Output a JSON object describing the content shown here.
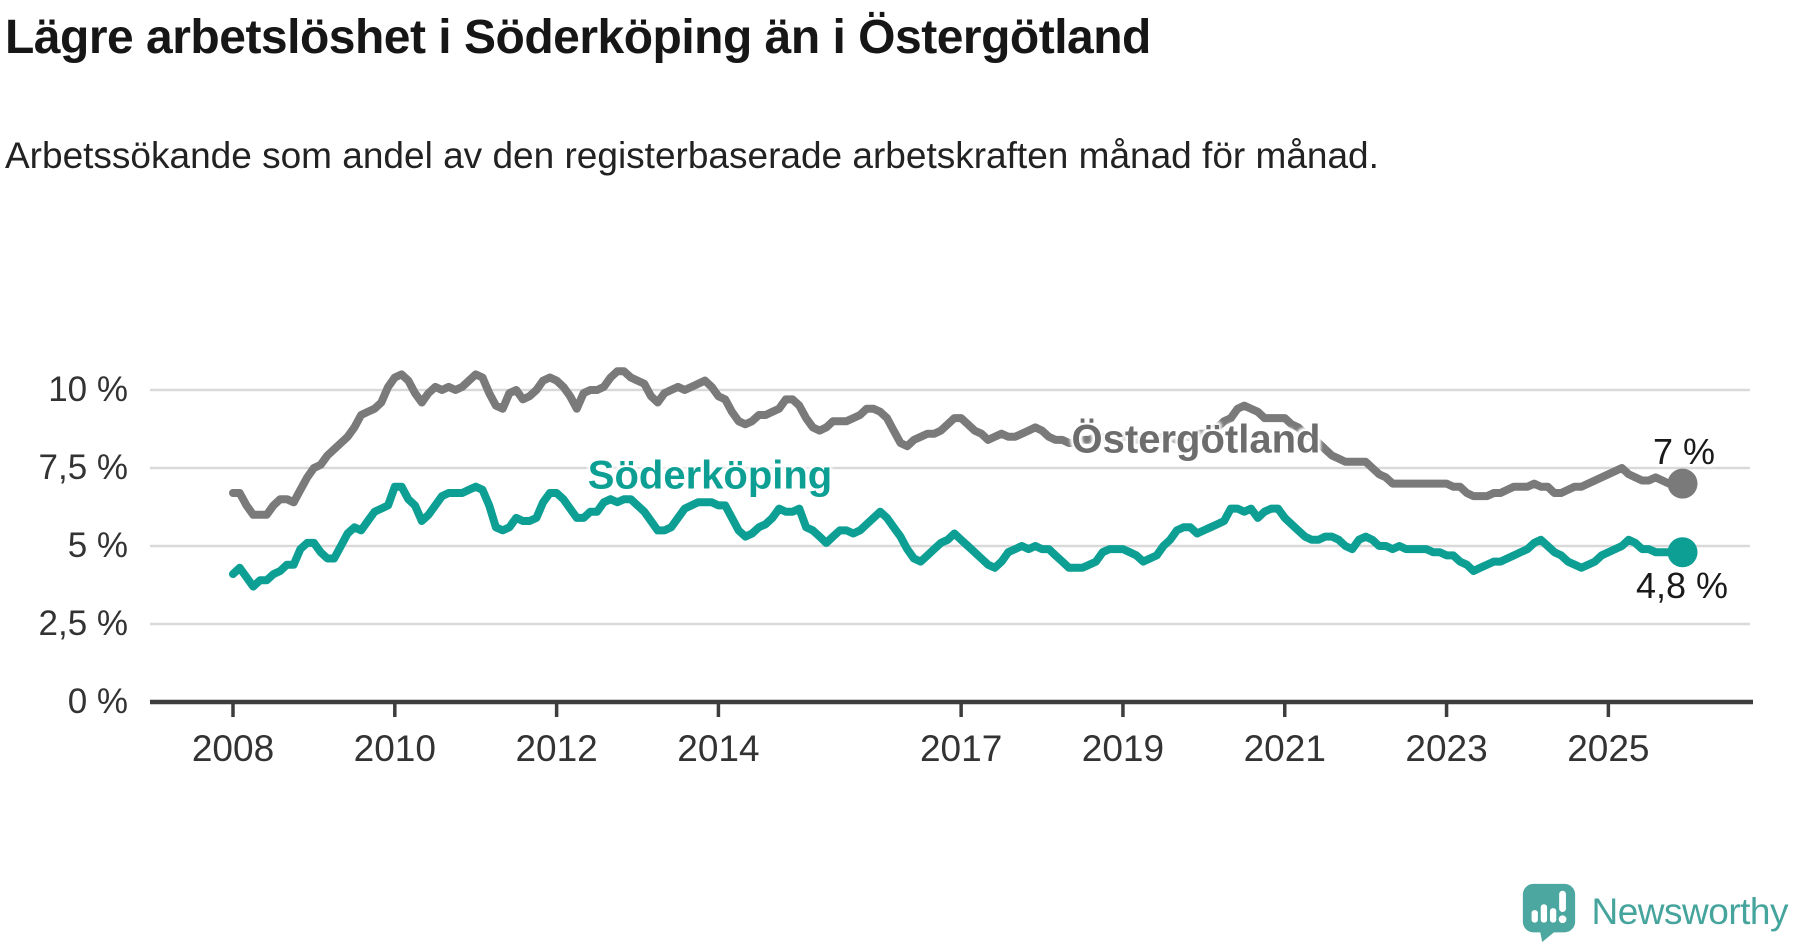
{
  "title": "Lägre arbetslöshet i Söderköping än i Östergötland",
  "subtitle": "Arbetssökande som andel av den registerbaserade arbetskraften månad för månad.",
  "footer": {
    "brand": "Newsworthy",
    "logo_icon": "bar-chart-speech-bubble-icon",
    "brand_color": "#45a49c",
    "icon_color": "#4ba79f"
  },
  "chart_data": {
    "type": "line",
    "title": "Lägre arbetslöshet i Söderköping än i Östergötland",
    "subtitle": "Arbetssökande som andel av den registerbaserade arbetskraften månad för månad.",
    "unit": "%",
    "x_start": "2008-01",
    "x_end": "2025-12",
    "x_frequency": "monthly",
    "ylim": [
      0,
      11
    ],
    "grid": "horizontal",
    "legend_position": "inline-labels",
    "colors": {
      "gridline": "#d9d9d9",
      "axis": "#3d3d3d",
      "tick_text": "#333333"
    },
    "yticks": [
      {
        "value": 0,
        "label": "0 %"
      },
      {
        "value": 2.5,
        "label": "2,5 %"
      },
      {
        "value": 5,
        "label": "5 %"
      },
      {
        "value": 7.5,
        "label": "7,5 %"
      },
      {
        "value": 10,
        "label": "10 %"
      }
    ],
    "xticks": [
      2008,
      2010,
      2012,
      2014,
      2017,
      2019,
      2021,
      2023,
      2025
    ],
    "series": [
      {
        "name": "Östergötland",
        "color": "#7a7a7a",
        "label_color": "#6d6d6d",
        "end_label": "7 %",
        "end_value": 7.0,
        "values": [
          6.7,
          6.7,
          6.3,
          6.0,
          6.0,
          6.0,
          6.3,
          6.5,
          6.5,
          6.4,
          6.8,
          7.2,
          7.5,
          7.6,
          7.9,
          8.1,
          8.3,
          8.5,
          8.8,
          9.2,
          9.3,
          9.4,
          9.6,
          10.1,
          10.4,
          10.5,
          10.3,
          9.9,
          9.6,
          9.9,
          10.1,
          10.0,
          10.1,
          10.0,
          10.1,
          10.3,
          10.5,
          10.4,
          9.9,
          9.5,
          9.4,
          9.9,
          10.0,
          9.7,
          9.8,
          10.0,
          10.3,
          10.4,
          10.3,
          10.1,
          9.8,
          9.4,
          9.9,
          10.0,
          10.0,
          10.1,
          10.4,
          10.6,
          10.6,
          10.4,
          10.3,
          10.2,
          9.8,
          9.6,
          9.9,
          10.0,
          10.1,
          10.0,
          10.1,
          10.2,
          10.3,
          10.1,
          9.8,
          9.7,
          9.3,
          9.0,
          8.9,
          9.0,
          9.2,
          9.2,
          9.3,
          9.4,
          9.7,
          9.7,
          9.5,
          9.1,
          8.8,
          8.7,
          8.8,
          9.0,
          9.0,
          9.0,
          9.1,
          9.2,
          9.4,
          9.4,
          9.3,
          9.1,
          8.7,
          8.3,
          8.2,
          8.4,
          8.5,
          8.6,
          8.6,
          8.7,
          8.9,
          9.1,
          9.1,
          8.9,
          8.7,
          8.6,
          8.4,
          8.5,
          8.6,
          8.5,
          8.5,
          8.6,
          8.7,
          8.8,
          8.7,
          8.5,
          8.4,
          8.4,
          8.3,
          8.3,
          8.4,
          8.4,
          8.5,
          8.5,
          8.4,
          8.5,
          8.5,
          8.5,
          8.4,
          8.4,
          8.3,
          8.4,
          8.5,
          8.5,
          8.4,
          8.5,
          8.5,
          8.6,
          8.6,
          8.7,
          8.8,
          9.0,
          9.1,
          9.4,
          9.5,
          9.4,
          9.3,
          9.1,
          9.1,
          9.1,
          9.1,
          8.9,
          8.8,
          8.6,
          8.5,
          8.3,
          8.1,
          7.9,
          7.8,
          7.7,
          7.7,
          7.7,
          7.7,
          7.5,
          7.3,
          7.2,
          7.0,
          7.0,
          7.0,
          7.0,
          7.0,
          7.0,
          7.0,
          7.0,
          7.0,
          6.9,
          6.9,
          6.7,
          6.6,
          6.6,
          6.6,
          6.7,
          6.7,
          6.8,
          6.9,
          6.9,
          6.9,
          7.0,
          6.9,
          6.9,
          6.7,
          6.7,
          6.8,
          6.9,
          6.9,
          7.0,
          7.1,
          7.2,
          7.3,
          7.4,
          7.5,
          7.3,
          7.2,
          7.1,
          7.1,
          7.2,
          7.1,
          7.0,
          7.0,
          7.0
        ]
      },
      {
        "name": "Söderköping",
        "color": "#0d9f93",
        "label_color": "#0d9f93",
        "end_label": "4,8 %",
        "end_value": 4.8,
        "values": [
          4.1,
          4.3,
          4.0,
          3.7,
          3.9,
          3.9,
          4.1,
          4.2,
          4.4,
          4.4,
          4.9,
          5.1,
          5.1,
          4.8,
          4.6,
          4.6,
          5.0,
          5.4,
          5.6,
          5.5,
          5.8,
          6.1,
          6.2,
          6.3,
          6.9,
          6.9,
          6.5,
          6.3,
          5.8,
          6.0,
          6.3,
          6.6,
          6.7,
          6.7,
          6.7,
          6.8,
          6.9,
          6.8,
          6.3,
          5.6,
          5.5,
          5.6,
          5.9,
          5.8,
          5.8,
          5.9,
          6.4,
          6.7,
          6.7,
          6.5,
          6.2,
          5.9,
          5.9,
          6.1,
          6.1,
          6.4,
          6.5,
          6.4,
          6.5,
          6.5,
          6.3,
          6.1,
          5.8,
          5.5,
          5.5,
          5.6,
          5.9,
          6.2,
          6.3,
          6.4,
          6.4,
          6.4,
          6.3,
          6.3,
          5.9,
          5.5,
          5.3,
          5.4,
          5.6,
          5.7,
          5.9,
          6.2,
          6.1,
          6.1,
          6.2,
          5.6,
          5.5,
          5.3,
          5.1,
          5.3,
          5.5,
          5.5,
          5.4,
          5.5,
          5.7,
          5.9,
          6.1,
          5.9,
          5.6,
          5.3,
          4.9,
          4.6,
          4.5,
          4.7,
          4.9,
          5.1,
          5.2,
          5.4,
          5.2,
          5.0,
          4.8,
          4.6,
          4.4,
          4.3,
          4.5,
          4.8,
          4.9,
          5.0,
          4.9,
          5.0,
          4.9,
          4.9,
          4.7,
          4.5,
          4.3,
          4.3,
          4.3,
          4.4,
          4.5,
          4.8,
          4.9,
          4.9,
          4.9,
          4.8,
          4.7,
          4.5,
          4.6,
          4.7,
          5.0,
          5.2,
          5.5,
          5.6,
          5.6,
          5.4,
          5.5,
          5.6,
          5.7,
          5.8,
          6.2,
          6.2,
          6.1,
          6.2,
          5.9,
          6.1,
          6.2,
          6.2,
          5.9,
          5.7,
          5.5,
          5.3,
          5.2,
          5.2,
          5.3,
          5.3,
          5.2,
          5.0,
          4.9,
          5.2,
          5.3,
          5.2,
          5.0,
          5.0,
          4.9,
          5.0,
          4.9,
          4.9,
          4.9,
          4.9,
          4.8,
          4.8,
          4.7,
          4.7,
          4.5,
          4.4,
          4.2,
          4.3,
          4.4,
          4.5,
          4.5,
          4.6,
          4.7,
          4.8,
          4.9,
          5.1,
          5.2,
          5.0,
          4.8,
          4.7,
          4.5,
          4.4,
          4.3,
          4.4,
          4.5,
          4.7,
          4.8,
          4.9,
          5.0,
          5.2,
          5.1,
          4.9,
          4.9,
          4.8,
          4.8,
          4.8,
          4.8,
          4.8
        ]
      }
    ]
  }
}
